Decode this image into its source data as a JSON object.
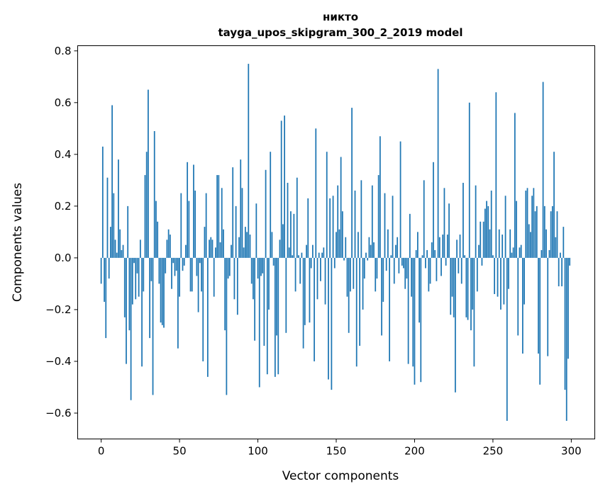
{
  "chart_data": {
    "type": "bar",
    "title": "никто",
    "subtitle": "tayga_upos_skipgram_300_2_2019 model",
    "xlabel": "Vector components",
    "ylabel": "Components values",
    "xlim": [
      -15,
      315
    ],
    "ylim": [
      -0.7,
      0.82
    ],
    "xticks": [
      0,
      50,
      100,
      150,
      200,
      250,
      300
    ],
    "xtick_labels": [
      "0",
      "50",
      "100",
      "150",
      "200",
      "250",
      "300"
    ],
    "yticks": [
      -0.6,
      -0.4,
      -0.2,
      0.0,
      0.2,
      0.4,
      0.6,
      0.8
    ],
    "ytick_labels": [
      "−0.6",
      "−0.4",
      "−0.2",
      "0.0",
      "0.2",
      "0.4",
      "0.6",
      "0.8"
    ],
    "grid": false,
    "bar_color": "#1f77b4",
    "values": [
      -0.1,
      0.43,
      -0.17,
      -0.31,
      0.31,
      -0.08,
      0.12,
      0.59,
      0.25,
      0.07,
      0.02,
      0.38,
      0.11,
      0.03,
      0.05,
      -0.23,
      -0.41,
      0.2,
      -0.28,
      -0.55,
      -0.18,
      -0.02,
      -0.16,
      -0.06,
      -0.15,
      0.07,
      -0.42,
      -0.13,
      0.32,
      0.41,
      0.65,
      -0.31,
      -0.09,
      -0.53,
      0.49,
      0.22,
      0.14,
      -0.1,
      -0.25,
      -0.26,
      -0.27,
      -0.06,
      0.07,
      0.11,
      0.09,
      -0.12,
      -0.02,
      -0.07,
      -0.05,
      -0.35,
      -0.15,
      0.25,
      -0.05,
      -0.03,
      0.05,
      0.37,
      0.22,
      -0.13,
      -0.13,
      0.36,
      0.26,
      -0.07,
      -0.21,
      -0.02,
      -0.13,
      -0.4,
      0.12,
      0.25,
      -0.46,
      0.07,
      0.08,
      0.07,
      -0.15,
      0.04,
      0.32,
      0.32,
      0.06,
      0.27,
      0.11,
      -0.28,
      -0.53,
      -0.08,
      -0.07,
      0.05,
      0.35,
      -0.16,
      0.2,
      -0.22,
      0.08,
      0.38,
      0.27,
      0.04,
      0.12,
      0.1,
      0.75,
      0.09,
      -0.1,
      -0.16,
      -0.32,
      0.21,
      -0.08,
      -0.5,
      -0.07,
      -0.06,
      -0.34,
      0.34,
      -0.45,
      -0.2,
      0.41,
      0.1,
      -0.03,
      -0.46,
      -0.3,
      -0.45,
      0.07,
      0.53,
      0.13,
      0.55,
      -0.29,
      0.29,
      0.04,
      0.18,
      0.01,
      0.17,
      -0.13,
      0.31,
      0.01,
      -0.1,
      0.02,
      -0.35,
      -0.26,
      0.05,
      0.23,
      -0.25,
      -0.04,
      0.05,
      -0.4,
      0.5,
      -0.16,
      0.02,
      -0.09,
      0.02,
      0.04,
      -0.18,
      0.41,
      -0.47,
      0.23,
      -0.51,
      0.24,
      -0.04,
      0.1,
      0.28,
      0.11,
      0.39,
      0.18,
      -0.01,
      0.08,
      -0.15,
      -0.29,
      -0.13,
      0.58,
      -0.12,
      0.26,
      -0.42,
      0.1,
      -0.34,
      0.3,
      -0.2,
      -0.08,
      0.02,
      -0.01,
      0.08,
      0.05,
      0.28,
      0.06,
      -0.13,
      -0.08,
      0.32,
      0.47,
      -0.3,
      -0.17,
      0.25,
      -0.05,
      0.11,
      -0.4,
      0.01,
      0.24,
      -0.1,
      0.05,
      0.08,
      -0.06,
      0.45,
      -0.03,
      -0.04,
      -0.12,
      -0.08,
      -0.41,
      0.17,
      -0.15,
      -0.42,
      -0.49,
      0.03,
      0.1,
      -0.25,
      -0.48,
      0.01,
      0.3,
      -0.04,
      0.03,
      -0.13,
      -0.1,
      0.06,
      0.37,
      0.03,
      -0.09,
      0.73,
      0.08,
      -0.07,
      0.09,
      0.27,
      -0.03,
      0.09,
      0.21,
      -0.22,
      -0.15,
      -0.23,
      -0.52,
      0.07,
      -0.06,
      0.09,
      -0.1,
      0.29,
      0.01,
      -0.23,
      -0.24,
      0.6,
      -0.28,
      -0.2,
      -0.42,
      0.28,
      -0.13,
      0.05,
      0.14,
      -0.03,
      0.14,
      0.19,
      0.22,
      0.2,
      0.11,
      0.26,
      0.01,
      -0.14,
      0.64,
      -0.15,
      0.11,
      -0.2,
      0.09,
      -0.18,
      0.24,
      -0.63,
      -0.12,
      0.11,
      0.02,
      0.04,
      0.56,
      0.22,
      -0.3,
      0.04,
      0.05,
      -0.37,
      -0.18,
      0.26,
      0.27,
      0.13,
      0.1,
      0.24,
      0.27,
      0.18,
      0.2,
      -0.37,
      -0.49,
      0.03,
      0.68,
      0.2,
      0.11,
      -0.38,
      0.03,
      0.18,
      0.2,
      0.41,
      0.08,
      0.18,
      -0.11,
      0.02,
      -0.11,
      0.12,
      -0.51,
      -0.63,
      -0.39,
      -0.03
    ]
  }
}
